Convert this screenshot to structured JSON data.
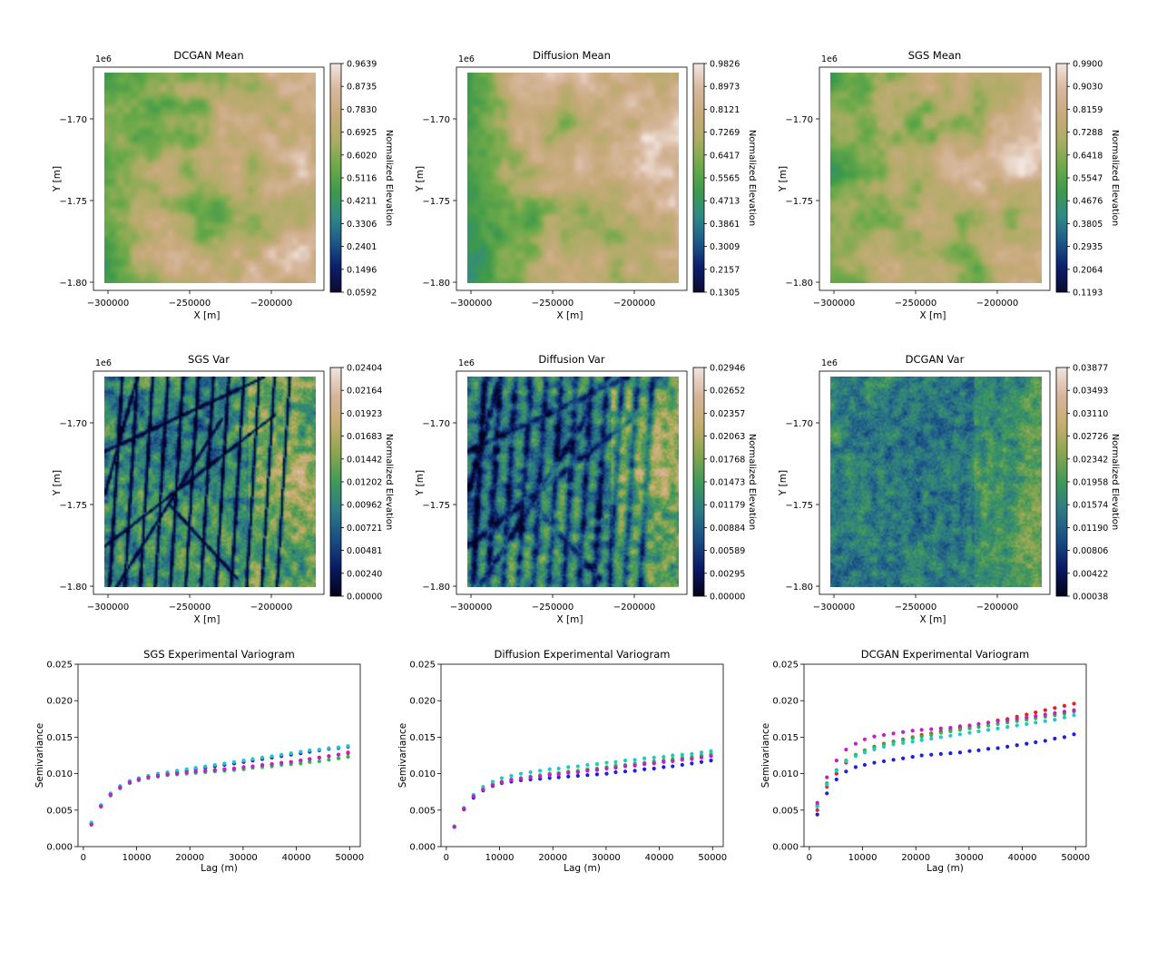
{
  "colors": {
    "terrain": [
      "#0a0a2e",
      "#0a1f6e",
      "#1e5a8a",
      "#2f8a86",
      "#3f9a4a",
      "#6faa4a",
      "#aeac66",
      "#c8aa7c",
      "#d8b89e",
      "#f2e6e0"
    ],
    "varmap": [
      "#02021a",
      "#0a1b66",
      "#1a4f84",
      "#2c7a86",
      "#3f9a5a",
      "#8aa64e",
      "#c6ad6e",
      "#d7b59c",
      "#f1e4df"
    ],
    "variogram_series": [
      "#e0221e",
      "#1d1de6",
      "#2db84a",
      "#22c7c7",
      "#c21ecc"
    ]
  },
  "chart_data": [
    {
      "type": "heatmap",
      "id": "dcgan-mean",
      "title": "DCGAN Mean",
      "xlabel": "X [m]",
      "ylabel": "Y [m]",
      "offset_label": "1e6",
      "xlim": [
        -300000,
        -170000
      ],
      "ylim": [
        -1.8,
        -1.675
      ],
      "xticks": [
        "−300000",
        "−250000",
        "−200000"
      ],
      "yticks": [
        "−1.70",
        "−1.75",
        "−1.80"
      ],
      "colorbar": {
        "label": "Normalized Elevation",
        "ticks": [
          "0.9639",
          "0.8735",
          "0.7830",
          "0.6925",
          "0.6020",
          "0.5116",
          "0.4211",
          "0.3306",
          "0.2401",
          "0.1496",
          "0.0592"
        ]
      },
      "pattern": "mean"
    },
    {
      "type": "heatmap",
      "id": "diffusion-mean",
      "title": "Diffusion Mean",
      "xlabel": "X [m]",
      "ylabel": "Y [m]",
      "offset_label": "1e6",
      "xlim": [
        -300000,
        -170000
      ],
      "ylim": [
        -1.8,
        -1.675
      ],
      "xticks": [
        "−300000",
        "−250000",
        "−200000"
      ],
      "yticks": [
        "−1.70",
        "−1.75",
        "−1.80"
      ],
      "colorbar": {
        "label": "Normalized Elevation",
        "ticks": [
          "0.9826",
          "0.8973",
          "0.8121",
          "0.7269",
          "0.6417",
          "0.5565",
          "0.4713",
          "0.3861",
          "0.3009",
          "0.2157",
          "0.1305"
        ]
      },
      "pattern": "mean"
    },
    {
      "type": "heatmap",
      "id": "sgs-mean",
      "title": "SGS Mean",
      "xlabel": "X [m]",
      "ylabel": "Y [m]",
      "offset_label": "1e6",
      "xlim": [
        -300000,
        -170000
      ],
      "ylim": [
        -1.8,
        -1.675
      ],
      "xticks": [
        "−300000",
        "−250000",
        "−200000"
      ],
      "yticks": [
        "−1.70",
        "−1.75",
        "−1.80"
      ],
      "colorbar": {
        "label": "Normalized Elevation",
        "ticks": [
          "0.9900",
          "0.9030",
          "0.8159",
          "0.7288",
          "0.6418",
          "0.5547",
          "0.4676",
          "0.3805",
          "0.2935",
          "0.2064",
          "0.1193"
        ]
      },
      "pattern": "mean"
    },
    {
      "type": "heatmap",
      "id": "sgs-var",
      "title": "SGS Var",
      "xlabel": "X [m]",
      "ylabel": "Y [m]",
      "offset_label": "1e6",
      "xlim": [
        -300000,
        -170000
      ],
      "ylim": [
        -1.8,
        -1.675
      ],
      "xticks": [
        "−300000",
        "−250000",
        "−200000"
      ],
      "yticks": [
        "−1.70",
        "−1.75",
        "−1.80"
      ],
      "colorbar": {
        "label": "Normalized Elevation",
        "ticks": [
          "0.02404",
          "0.02164",
          "0.01923",
          "0.01683",
          "0.01442",
          "0.01202",
          "0.00962",
          "0.00721",
          "0.00481",
          "0.00240",
          "0.00000"
        ]
      },
      "pattern": "var-sharp"
    },
    {
      "type": "heatmap",
      "id": "diffusion-var",
      "title": "Diffusion Var",
      "xlabel": "X [m]",
      "ylabel": "Y [m]",
      "offset_label": "1e6",
      "xlim": [
        -300000,
        -170000
      ],
      "ylim": [
        -1.8,
        -1.675
      ],
      "xticks": [
        "−300000",
        "−250000",
        "−200000"
      ],
      "yticks": [
        "−1.70",
        "−1.75",
        "−1.80"
      ],
      "colorbar": {
        "label": "Normalized Elevation",
        "ticks": [
          "0.02946",
          "0.02652",
          "0.02357",
          "0.02063",
          "0.01768",
          "0.01473",
          "0.01179",
          "0.00884",
          "0.00589",
          "0.00295",
          "0.00000"
        ]
      },
      "pattern": "var-medium"
    },
    {
      "type": "heatmap",
      "id": "dcgan-var",
      "title": "DCGAN Var",
      "xlabel": "X [m]",
      "ylabel": "Y [m]",
      "offset_label": "1e6",
      "xlim": [
        -300000,
        -170000
      ],
      "ylim": [
        -1.8,
        -1.675
      ],
      "xticks": [
        "−300000",
        "−250000",
        "−200000"
      ],
      "yticks": [
        "−1.70",
        "−1.75",
        "−1.80"
      ],
      "colorbar": {
        "label": "Normalized Elevation",
        "ticks": [
          "0.03877",
          "0.03493",
          "0.03110",
          "0.02726",
          "0.02342",
          "0.01958",
          "0.01574",
          "0.01190",
          "0.00806",
          "0.00422",
          "0.00038"
        ]
      },
      "pattern": "var-blurry"
    },
    {
      "type": "scatter",
      "id": "sgs-variogram",
      "title": "SGS Experimental Variogram",
      "xlabel": "Lag (m)",
      "ylabel": "Semivariance",
      "xlim": [
        -1000,
        52000
      ],
      "ylim": [
        0,
        0.025
      ],
      "xticks": [
        0,
        10000,
        20000,
        30000,
        40000,
        50000
      ],
      "yticks": [
        0.0,
        0.005,
        0.01,
        0.015,
        0.02,
        0.025
      ],
      "x": [
        1500,
        3300,
        5100,
        6900,
        8700,
        10400,
        12200,
        14000,
        15800,
        17600,
        19400,
        21100,
        22900,
        24700,
        26500,
        28300,
        30100,
        31800,
        33600,
        35400,
        37200,
        39000,
        40800,
        42500,
        44300,
        46100,
        47900,
        49700
      ],
      "series": [
        {
          "values": [
            0.0031,
            0.0055,
            0.0071,
            0.008,
            0.0087,
            0.0091,
            0.0094,
            0.0096,
            0.0098,
            0.01,
            0.0101,
            0.0102,
            0.0103,
            0.0104,
            0.0106,
            0.0107,
            0.0108,
            0.011,
            0.0111,
            0.0113,
            0.0114,
            0.0116,
            0.0118,
            0.012,
            0.0122,
            0.0124,
            0.0126,
            0.0129
          ]
        },
        {
          "values": [
            0.0032,
            0.0056,
            0.0072,
            0.0082,
            0.0089,
            0.0093,
            0.0096,
            0.0098,
            0.01,
            0.0102,
            0.0104,
            0.0106,
            0.0108,
            0.011,
            0.0112,
            0.0114,
            0.0116,
            0.0118,
            0.012,
            0.0122,
            0.0124,
            0.0126,
            0.0128,
            0.013,
            0.0132,
            0.0134,
            0.0135,
            0.0137
          ]
        },
        {
          "values": [
            0.0031,
            0.0055,
            0.007,
            0.008,
            0.0087,
            0.0091,
            0.0094,
            0.0096,
            0.0098,
            0.0099,
            0.01,
            0.0101,
            0.0102,
            0.0103,
            0.0104,
            0.0105,
            0.0106,
            0.0108,
            0.0109,
            0.011,
            0.0112,
            0.0113,
            0.0114,
            0.0116,
            0.0117,
            0.0119,
            0.0121,
            0.0123
          ]
        },
        {
          "values": [
            0.0033,
            0.0057,
            0.0073,
            0.0083,
            0.009,
            0.0094,
            0.0097,
            0.01,
            0.0102,
            0.0104,
            0.0106,
            0.0108,
            0.011,
            0.0112,
            0.0114,
            0.0116,
            0.0118,
            0.012,
            0.0122,
            0.0124,
            0.0126,
            0.0128,
            0.013,
            0.0132,
            0.0133,
            0.0135,
            0.0136,
            0.0138
          ]
        },
        {
          "values": [
            0.003,
            0.0055,
            0.0071,
            0.0081,
            0.0088,
            0.0092,
            0.0095,
            0.0097,
            0.0099,
            0.01,
            0.0102,
            0.0103,
            0.0104,
            0.0105,
            0.0106,
            0.0107,
            0.0109,
            0.011,
            0.0112,
            0.0113,
            0.0115,
            0.0116,
            0.0118,
            0.012,
            0.0122,
            0.0124,
            0.0126,
            0.0128
          ]
        }
      ]
    },
    {
      "type": "scatter",
      "id": "diffusion-variogram",
      "title": "Diffusion Experimental Variogram",
      "xlabel": "Lag (m)",
      "ylabel": "Semivariance",
      "xlim": [
        -1000,
        52000
      ],
      "ylim": [
        0,
        0.025
      ],
      "xticks": [
        0,
        10000,
        20000,
        30000,
        40000,
        50000
      ],
      "yticks": [
        0.0,
        0.005,
        0.01,
        0.015,
        0.02,
        0.025
      ],
      "x": [
        1500,
        3300,
        5100,
        6900,
        8700,
        10400,
        12200,
        14000,
        15800,
        17600,
        19400,
        21100,
        22900,
        24700,
        26500,
        28300,
        30100,
        31800,
        33600,
        35400,
        37200,
        39000,
        40800,
        42500,
        44300,
        46100,
        47900,
        49700
      ],
      "series": [
        {
          "values": [
            0.0027,
            0.0052,
            0.0069,
            0.0079,
            0.0085,
            0.0089,
            0.0092,
            0.0094,
            0.0096,
            0.0097,
            0.0099,
            0.01,
            0.0102,
            0.0103,
            0.0105,
            0.0106,
            0.0108,
            0.0109,
            0.0111,
            0.0112,
            0.0114,
            0.0115,
            0.0117,
            0.0118,
            0.012,
            0.0121,
            0.0123,
            0.0125
          ]
        },
        {
          "values": [
            0.0027,
            0.0051,
            0.0067,
            0.0077,
            0.0083,
            0.0087,
            0.0089,
            0.0091,
            0.0092,
            0.0093,
            0.0094,
            0.0095,
            0.0096,
            0.0097,
            0.0098,
            0.0099,
            0.01,
            0.0102,
            0.0103,
            0.0104,
            0.0106,
            0.0107,
            0.0109,
            0.011,
            0.0112,
            0.0114,
            0.0116,
            0.0118
          ]
        },
        {
          "values": [
            0.0027,
            0.0052,
            0.0069,
            0.0079,
            0.0085,
            0.0089,
            0.0092,
            0.0094,
            0.0096,
            0.0098,
            0.01,
            0.0101,
            0.0103,
            0.0104,
            0.0106,
            0.0107,
            0.0109,
            0.0111,
            0.0112,
            0.0114,
            0.0115,
            0.0117,
            0.0118,
            0.012,
            0.0122,
            0.0123,
            0.0125,
            0.0127
          ]
        },
        {
          "values": [
            0.0028,
            0.0053,
            0.0071,
            0.0082,
            0.0089,
            0.0094,
            0.0097,
            0.01,
            0.0102,
            0.0104,
            0.0106,
            0.0107,
            0.0109,
            0.011,
            0.0112,
            0.0113,
            0.0115,
            0.0116,
            0.0118,
            0.0119,
            0.0121,
            0.0122,
            0.0123,
            0.0125,
            0.0126,
            0.0127,
            0.0129,
            0.0131
          ]
        },
        {
          "values": [
            0.0027,
            0.0052,
            0.0069,
            0.0078,
            0.0084,
            0.0088,
            0.0091,
            0.0093,
            0.0095,
            0.0096,
            0.0098,
            0.0099,
            0.0101,
            0.0102,
            0.0104,
            0.0105,
            0.0107,
            0.0108,
            0.011,
            0.0111,
            0.0113,
            0.0114,
            0.0116,
            0.0117,
            0.0119,
            0.012,
            0.0122,
            0.0124
          ]
        }
      ]
    },
    {
      "type": "scatter",
      "id": "dcgan-variogram",
      "title": "DCGAN Experimental Variogram",
      "xlabel": "Lag (m)",
      "ylabel": "Semivariance",
      "xlim": [
        -1000,
        52000
      ],
      "ylim": [
        0,
        0.025
      ],
      "xticks": [
        0,
        10000,
        20000,
        30000,
        40000,
        50000
      ],
      "yticks": [
        0.0,
        0.005,
        0.01,
        0.015,
        0.02,
        0.025
      ],
      "x": [
        1500,
        3300,
        5100,
        6900,
        8700,
        10400,
        12200,
        14000,
        15800,
        17600,
        19400,
        21100,
        22900,
        24700,
        26500,
        28300,
        30100,
        31800,
        33600,
        35400,
        37200,
        39000,
        40800,
        42500,
        44300,
        46100,
        47900,
        49700
      ],
      "series": [
        {
          "values": [
            0.005,
            0.0082,
            0.01,
            0.0115,
            0.0125,
            0.0132,
            0.0137,
            0.0141,
            0.0144,
            0.0147,
            0.015,
            0.0153,
            0.0155,
            0.0158,
            0.016,
            0.0163,
            0.0165,
            0.0168,
            0.017,
            0.0173,
            0.0175,
            0.0178,
            0.0181,
            0.0184,
            0.0187,
            0.019,
            0.0193,
            0.0196
          ]
        },
        {
          "values": [
            0.0044,
            0.0073,
            0.0092,
            0.0103,
            0.0109,
            0.0112,
            0.0115,
            0.0117,
            0.0119,
            0.0121,
            0.0123,
            0.0125,
            0.0126,
            0.0127,
            0.0128,
            0.0129,
            0.0131,
            0.0132,
            0.0134,
            0.0135,
            0.0137,
            0.0139,
            0.0141,
            0.0143,
            0.0145,
            0.0148,
            0.015,
            0.0154
          ]
        },
        {
          "values": [
            0.0057,
            0.0087,
            0.0105,
            0.0118,
            0.0126,
            0.0132,
            0.0136,
            0.014,
            0.0143,
            0.0146,
            0.0149,
            0.0151,
            0.0153,
            0.0156,
            0.0158,
            0.016,
            0.0162,
            0.0164,
            0.0166,
            0.0168,
            0.017,
            0.0172,
            0.0174,
            0.0176,
            0.0178,
            0.018,
            0.0182,
            0.0185
          ]
        },
        {
          "values": [
            0.0055,
            0.0085,
            0.0104,
            0.0117,
            0.0124,
            0.0129,
            0.0133,
            0.0137,
            0.014,
            0.0142,
            0.0144,
            0.0146,
            0.0148,
            0.015,
            0.0152,
            0.0154,
            0.0156,
            0.0158,
            0.016,
            0.0162,
            0.0164,
            0.0166,
            0.0168,
            0.017,
            0.0172,
            0.0174,
            0.0177,
            0.018
          ]
        },
        {
          "values": [
            0.006,
            0.0095,
            0.0118,
            0.0133,
            0.0141,
            0.0147,
            0.0151,
            0.0153,
            0.0155,
            0.0157,
            0.0159,
            0.016,
            0.0161,
            0.0162,
            0.0163,
            0.0165,
            0.0166,
            0.0168,
            0.017,
            0.0172,
            0.0173,
            0.0175,
            0.0177,
            0.0179,
            0.0181,
            0.0183,
            0.0185,
            0.0187
          ]
        }
      ]
    }
  ]
}
